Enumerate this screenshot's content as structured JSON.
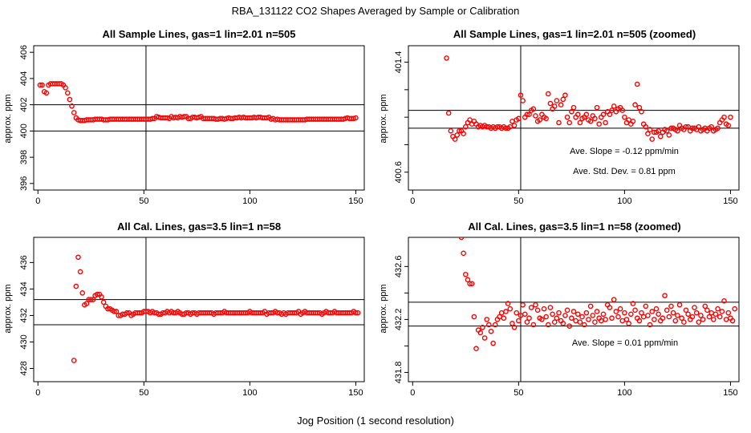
{
  "figure": {
    "suptitle": "RBA_131122  CO2 Shapes Averaged by Sample or Calibration",
    "xlabel": "Jog Position (1 second resolution)"
  },
  "colors": {
    "points": "#ff0000",
    "lines": "#000000",
    "background": "#ffffff"
  },
  "chart_data": [
    {
      "type": "scatter",
      "title": "All Sample Lines, gas=1 lin=2.01 n=505",
      "xlabel": "",
      "ylabel": "approx. ppm",
      "xlim": [
        -2,
        154
      ],
      "ylim": [
        395.5,
        406.5
      ],
      "xticks": [
        0,
        50,
        100,
        150
      ],
      "yticks": [
        396,
        398,
        400,
        402,
        404,
        406
      ],
      "vline": 51,
      "hlines": [
        402,
        400
      ],
      "annotations": [],
      "x_start": 1,
      "y": [
        403.5,
        403.5,
        403.0,
        402.9,
        403.5,
        403.6,
        403.6,
        403.6,
        403.6,
        403.6,
        403.6,
        403.5,
        403.3,
        402.9,
        402.4,
        401.9,
        401.4,
        401.0,
        400.85,
        400.8,
        400.8,
        400.8,
        400.85,
        400.85,
        400.85,
        400.85,
        400.9,
        400.9,
        400.9,
        400.9,
        400.85,
        400.85,
        400.85,
        400.9,
        400.9,
        400.9,
        400.9,
        400.9,
        400.9,
        400.9,
        400.9,
        400.9,
        400.9,
        400.9,
        400.9,
        400.9,
        400.9,
        400.9,
        400.9,
        400.9,
        400.9,
        400.9,
        400.9,
        400.95,
        400.95,
        401.1,
        401.05,
        401.0,
        401.0,
        401.0,
        401.0,
        400.95,
        401.1,
        401.0,
        401.05,
        401.0,
        401.1,
        401.05,
        401.1,
        401.1,
        400.95,
        400.95,
        401.05,
        401.05,
        401.0,
        401.05,
        401.1,
        400.95,
        400.95,
        400.95,
        400.95,
        400.95,
        400.95,
        400.9,
        400.9,
        400.95,
        400.95,
        400.9,
        400.95,
        401.0,
        400.95,
        400.95,
        401.0,
        401.0,
        401.05,
        401.0,
        401.05,
        401.0,
        401.0,
        401.0,
        401.0,
        401.05,
        401.0,
        401.05,
        401.05,
        401.0,
        401.0,
        401.0,
        401.05,
        400.9,
        400.95,
        400.85,
        400.9,
        400.85,
        400.85,
        400.85,
        400.85,
        400.85,
        400.85,
        400.85,
        400.85,
        400.85,
        400.85,
        400.85,
        400.85,
        400.85,
        400.9,
        400.9,
        400.9,
        400.9,
        400.9,
        400.9,
        400.9,
        400.9,
        400.9,
        400.9,
        400.9,
        400.9,
        400.9,
        400.9,
        400.9,
        400.9,
        400.9,
        400.9,
        400.95,
        401.0,
        400.95,
        400.95,
        400.95,
        401.0
      ]
    },
    {
      "type": "scatter",
      "title": "All Sample Lines, gas=1 lin=2.01 n=505 (zoomed)",
      "xlabel": "",
      "ylabel": "approx. ppm",
      "xlim": [
        -2,
        154
      ],
      "ylim": [
        400.47,
        401.52
      ],
      "xticks": [
        0,
        50,
        100,
        150
      ],
      "yticks": [
        400.6,
        400.8,
        401.0,
        401.2,
        401.4
      ],
      "ytick_labels_shown": [
        "400.6",
        "401.0",
        "401.4"
      ],
      "vline": 51,
      "hlines": [
        401.05,
        400.92
      ],
      "annotations": [
        "Ave. Slope =  -0.12  ppm/min",
        "Ave. Std. Dev. =  0.81  ppm"
      ],
      "x_start": 16,
      "y": [
        401.43,
        401.03,
        400.9,
        400.86,
        400.84,
        400.87,
        400.9,
        400.9,
        400.88,
        400.93,
        400.96,
        400.98,
        400.95,
        400.97,
        400.95,
        400.93,
        400.94,
        400.93,
        400.94,
        400.93,
        400.93,
        400.92,
        400.93,
        400.92,
        400.93,
        400.93,
        400.92,
        400.93,
        400.92,
        400.92,
        400.93,
        400.97,
        400.94,
        400.98,
        400.99,
        401.16,
        401.12,
        401.0,
        401.02,
        401.02,
        401.05,
        401.06,
        401.01,
        400.97,
        400.98,
        401.02,
        401.0,
        400.99,
        401.17,
        401.1,
        401.06,
        401.08,
        401.12,
        400.96,
        401.09,
        401.13,
        401.16,
        401.0,
        400.96,
        401.04,
        401.07,
        401.0,
        401.02,
        400.96,
        400.99,
        401.0,
        401.02,
        400.98,
        400.97,
        401.01,
        400.99,
        401.07,
        400.95,
        401.0,
        401.02,
        400.96,
        401.04,
        401.02,
        401.05,
        401.08,
        401.04,
        401.06,
        401.07,
        401.05,
        401.0,
        400.96,
        400.98,
        400.95,
        400.97,
        401.09,
        401.24,
        401.07,
        401.04,
        400.95,
        400.93,
        400.88,
        400.91,
        400.84,
        400.89,
        400.89,
        400.9,
        400.86,
        400.89,
        400.91,
        400.9,
        400.87,
        400.92,
        400.92,
        400.91,
        400.9,
        400.94,
        400.92,
        400.91,
        400.93,
        400.93,
        400.9,
        400.92,
        400.92,
        400.91,
        400.93,
        400.9,
        400.91,
        400.92,
        400.9,
        400.92,
        400.93,
        400.9,
        400.91,
        400.92,
        400.96,
        400.98,
        401.0,
        400.95,
        400.94,
        401.0
      ]
    },
    {
      "type": "scatter",
      "title": "All Cal. Lines, gas=3.5 lin=1 n=58",
      "xlabel": "",
      "ylabel": "approx. ppm",
      "xlim": [
        -2,
        154
      ],
      "ylim": [
        427.0,
        437.9
      ],
      "xticks": [
        0,
        50,
        100,
        150
      ],
      "yticks": [
        428,
        430,
        432,
        434,
        436
      ],
      "vline": 51,
      "hlines": [
        433.2,
        431.3
      ],
      "annotations": [],
      "x_start": 17,
      "y": [
        428.6,
        434.2,
        436.4,
        435.3,
        433.7,
        432.8,
        432.9,
        433.2,
        433.2,
        433.2,
        433.5,
        433.6,
        433.6,
        433.4,
        433.0,
        432.7,
        432.5,
        432.5,
        432.4,
        432.3,
        432.3,
        432.0,
        432.0,
        432.1,
        432.1,
        432.2,
        432.2,
        432.0,
        432.1,
        432.2,
        432.2,
        432.2,
        432.2,
        432.3,
        432.3,
        432.3,
        432.2,
        432.3,
        432.2,
        432.2,
        432.1,
        432.1,
        432.2,
        432.2,
        432.3,
        432.2,
        432.3,
        432.2,
        432.2,
        432.3,
        432.2,
        432.1,
        432.1,
        432.2,
        432.2,
        432.1,
        432.2,
        432.2,
        432.1,
        432.2,
        432.2,
        432.2,
        432.2,
        432.2,
        432.2,
        432.2,
        432.1,
        432.2,
        432.2,
        432.2,
        432.2,
        432.3,
        432.2,
        432.2,
        432.2,
        432.2,
        432.2,
        432.2,
        432.2,
        432.2,
        432.2,
        432.2,
        432.2,
        432.3,
        432.2,
        432.2,
        432.2,
        432.2,
        432.2,
        432.2,
        432.3,
        432.1,
        432.2,
        432.2,
        432.2,
        432.3,
        432.2,
        432.2,
        432.1,
        432.2,
        432.1,
        432.2,
        432.2,
        432.2,
        432.2,
        432.2,
        432.3,
        432.1,
        432.2,
        432.3,
        432.2,
        432.2,
        432.2,
        432.2,
        432.2,
        432.2,
        432.2,
        432.1,
        432.2,
        432.3,
        432.2,
        432.2,
        432.2,
        432.3,
        432.2,
        432.2,
        432.2,
        432.2,
        432.2,
        432.2,
        432.2,
        432.2,
        432.3,
        432.2,
        432.2
      ]
    },
    {
      "type": "scatter",
      "title": "All Cal. Lines, gas=3.5 lin=1 n=58 (zoomed)",
      "xlabel": "",
      "ylabel": "approx. ppm",
      "xlim": [
        -2,
        154
      ],
      "ylim": [
        431.73,
        432.82
      ],
      "xticks": [
        0,
        50,
        100,
        150
      ],
      "yticks": [
        431.8,
        432.0,
        432.2,
        432.4,
        432.6
      ],
      "ytick_labels_shown": [
        "431.8",
        "432.2",
        "432.6"
      ],
      "vline": 51,
      "hlines": [
        432.33,
        432.15
      ],
      "annotations": [
        "Ave. Slope =  0.01  ppm/min"
      ],
      "x_start": 23,
      "y": [
        432.82,
        432.7,
        432.54,
        432.5,
        432.47,
        432.47,
        432.22,
        431.98,
        432.12,
        432.1,
        432.14,
        432.06,
        432.2,
        432.16,
        432.11,
        432.02,
        432.16,
        432.2,
        432.22,
        432.25,
        432.21,
        432.26,
        432.32,
        432.28,
        432.17,
        432.14,
        432.25,
        432.19,
        432.23,
        432.31,
        432.24,
        432.18,
        432.21,
        432.29,
        432.16,
        432.31,
        432.27,
        432.21,
        432.2,
        432.28,
        432.22,
        432.16,
        432.29,
        432.24,
        432.18,
        432.21,
        432.25,
        432.19,
        432.17,
        432.23,
        432.27,
        432.15,
        432.21,
        432.26,
        432.19,
        432.24,
        432.18,
        432.22,
        432.16,
        432.25,
        432.2,
        432.3,
        432.23,
        432.18,
        432.26,
        432.21,
        432.19,
        432.24,
        432.2,
        432.31,
        432.29,
        432.21,
        432.35,
        432.26,
        432.22,
        432.28,
        432.19,
        432.25,
        432.2,
        432.17,
        432.24,
        432.32,
        432.27,
        432.21,
        432.19,
        432.25,
        432.22,
        432.3,
        432.23,
        432.16,
        432.26,
        432.2,
        432.28,
        432.24,
        432.19,
        432.21,
        432.38,
        432.27,
        432.22,
        432.3,
        432.25,
        432.19,
        432.23,
        432.31,
        432.21,
        432.18,
        432.27,
        432.24,
        432.2,
        432.22,
        432.29,
        432.25,
        432.18,
        432.23,
        432.2,
        432.3,
        432.27,
        432.22,
        432.25,
        432.2,
        432.24,
        432.28,
        432.22,
        432.26,
        432.34,
        432.2,
        432.25,
        432.21,
        432.19,
        432.28
      ]
    }
  ]
}
